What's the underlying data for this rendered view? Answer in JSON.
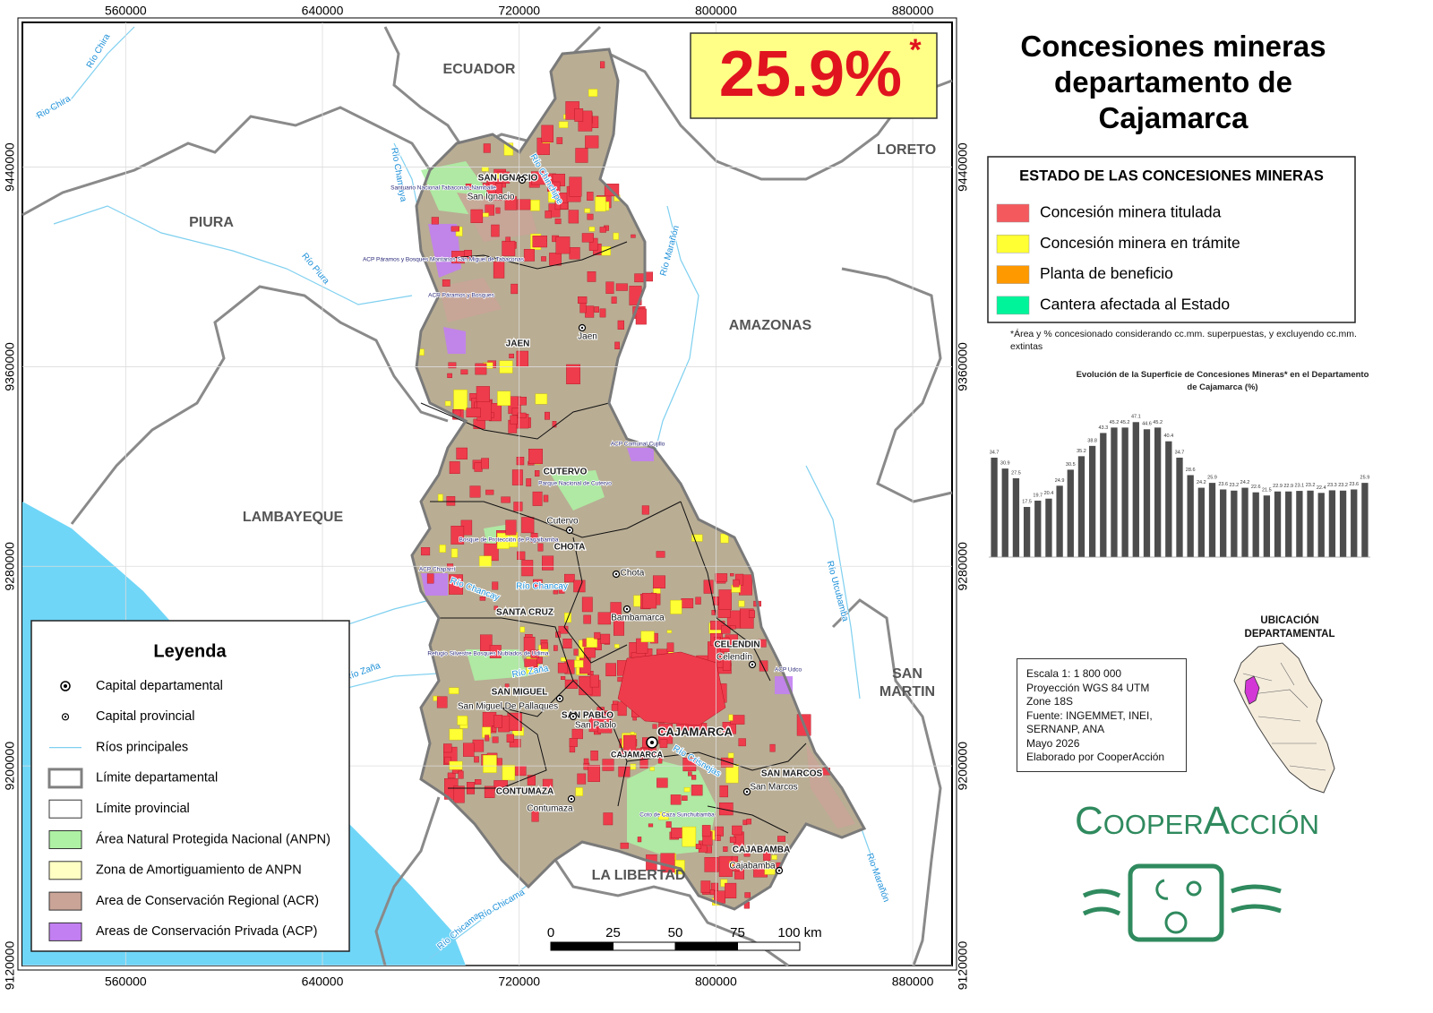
{
  "title": "Concesiones mineras departamento de Cajamarca",
  "badge": {
    "text": "25.9%",
    "mark": "*"
  },
  "status_legend": {
    "title": "ESTADO DE LAS CONCESIONES MINERAS",
    "items": [
      {
        "label": "Concesión minera titulada",
        "color": "#f4595e"
      },
      {
        "label": "Concesión minera en trámite",
        "color": "#ffff33"
      },
      {
        "label": "Planta de beneficio",
        "color": "#ff9900"
      },
      {
        "label": "Cantera afectada al Estado",
        "color": "#00f59a"
      }
    ]
  },
  "note": "*Área y % concesionado considerando cc.mm. superpuestas, y excluyendo cc.mm. extintas",
  "chart_data": {
    "type": "bar",
    "title": "Evolución de la Superficie de Concesiones Mineras* en el Departamento de Cajamarca (%)",
    "categories": [
      null,
      null,
      null,
      null,
      null,
      null,
      null,
      null,
      null,
      null,
      null,
      null,
      null,
      null,
      null,
      null,
      null,
      null,
      null,
      null,
      null,
      null,
      null,
      null,
      null,
      null,
      null,
      null,
      null,
      null,
      null,
      null,
      null,
      null,
      null
    ],
    "values": [
      34.7,
      30.9,
      27.5,
      17.5,
      19.7,
      20.4,
      24.9,
      30.5,
      35.2,
      38.8,
      43.3,
      45.2,
      45.2,
      47.1,
      44.6,
      45.2,
      40.4,
      34.7,
      28.6,
      24.2,
      25.9,
      23.6,
      23.2,
      24.2,
      22.6,
      21.5,
      22.9,
      22.9,
      23.1,
      23.2,
      22.4,
      23.3,
      23.2,
      23.6,
      25.9
    ],
    "color": "#4d4d4d",
    "ylim": [
      0,
      50
    ]
  },
  "map": {
    "xlim": [
      518000,
      896000
    ],
    "ylim": [
      9120000,
      9498000
    ],
    "xticks": [
      560000,
      640000,
      720000,
      800000,
      880000
    ],
    "yticks": [
      9120000,
      9200000,
      9280000,
      9360000,
      9440000
    ],
    "regions": [
      "ECUADOR",
      "PIURA",
      "LAMBAYEQUE",
      "AMAZONAS",
      "LORETO",
      "SAN",
      "MARTIN",
      "LA LIBERTAD"
    ],
    "provinces": [
      "SAN IGNACIO",
      "JAEN",
      "CUTERVO",
      "CHOTA",
      "SANTA CRUZ",
      "CELENDIN",
      "SAN MIGUEL",
      "SAN PABLO",
      "CAJAMARCA",
      "CAJAMARCA",
      "SAN MARCOS",
      "CONTUMAZA",
      "CAJABAMBA"
    ],
    "cities": [
      "San Ignacio",
      "Jaen",
      "Cutervo",
      "Chota",
      "Bambamarca",
      "Celendín",
      "San Miguel De Pallaques",
      "San Pablo",
      "San Marcos",
      "Contumaza",
      "Cajabamba"
    ],
    "rivers": [
      "Río Chira",
      "Rio Chira",
      "Río Chamaya",
      "Río Piura",
      "Río Chinchipe",
      "Río Marañón",
      "Río Utcubamba",
      "Río Chancay",
      "Río Chancay",
      "Río Zaña",
      "Río Zaña",
      "Río Chicama",
      "Río Chicama",
      "Río Crisnejas",
      "Rio Marañón"
    ],
    "areas": [
      "Santuario Nacional Tabaconas-Namballe",
      "ACP Páramos y Bosques Montanos San Miguel de Tabaconas",
      "ACR Páramos y Bosques",
      "ACP Comunal Cujillo",
      "Parque Nacional de Cutervo",
      "Bosque de Protección de Pagaibamba",
      "ACP Chaparrí",
      "Refugio Silvestre Bosques Nublados de Udima",
      "ACP Udco",
      "Coto de Caza Sunchubamba"
    ],
    "scale_bar": [
      0,
      25,
      50,
      75,
      {
        "value": 100,
        "label": "100 km"
      }
    ]
  },
  "legend": {
    "title": "Leyenda",
    "items": [
      {
        "label": "Capital departamental",
        "color": "#000000"
      },
      {
        "label": "Capital provincial",
        "color": "#000000"
      },
      {
        "label": "Ríos principales",
        "color": "#7fd0f0"
      },
      {
        "label": "Límite departamental",
        "color": "#808080"
      },
      {
        "label": "Límite provincial",
        "color": "#000000"
      },
      {
        "label": "Área Natural Protegida Nacional (ANPN)",
        "color": "#aef0a4"
      },
      {
        "label": "Zona de Amortiguamiento de ANPN",
        "color": "#ffffc4"
      },
      {
        "label": "Area de Conservación Regional (ACR)",
        "color": "#c9a497"
      },
      {
        "label": "Areas de Conservación Privada (ACP)",
        "color": "#c27ff2"
      }
    ]
  },
  "info": [
    "Escala 1: 1 800 000",
    "Proyección WGS 84 UTM",
    "Zone 18S",
    "Fuente: INGEMMET, INEI,",
    "SERNANP, ANA",
    "Mayo 2026",
    "Elaborado por CooperAcción"
  ],
  "location_title": "UBICACIÓN DEPARTAMENTAL",
  "logo": "CooperAcción"
}
